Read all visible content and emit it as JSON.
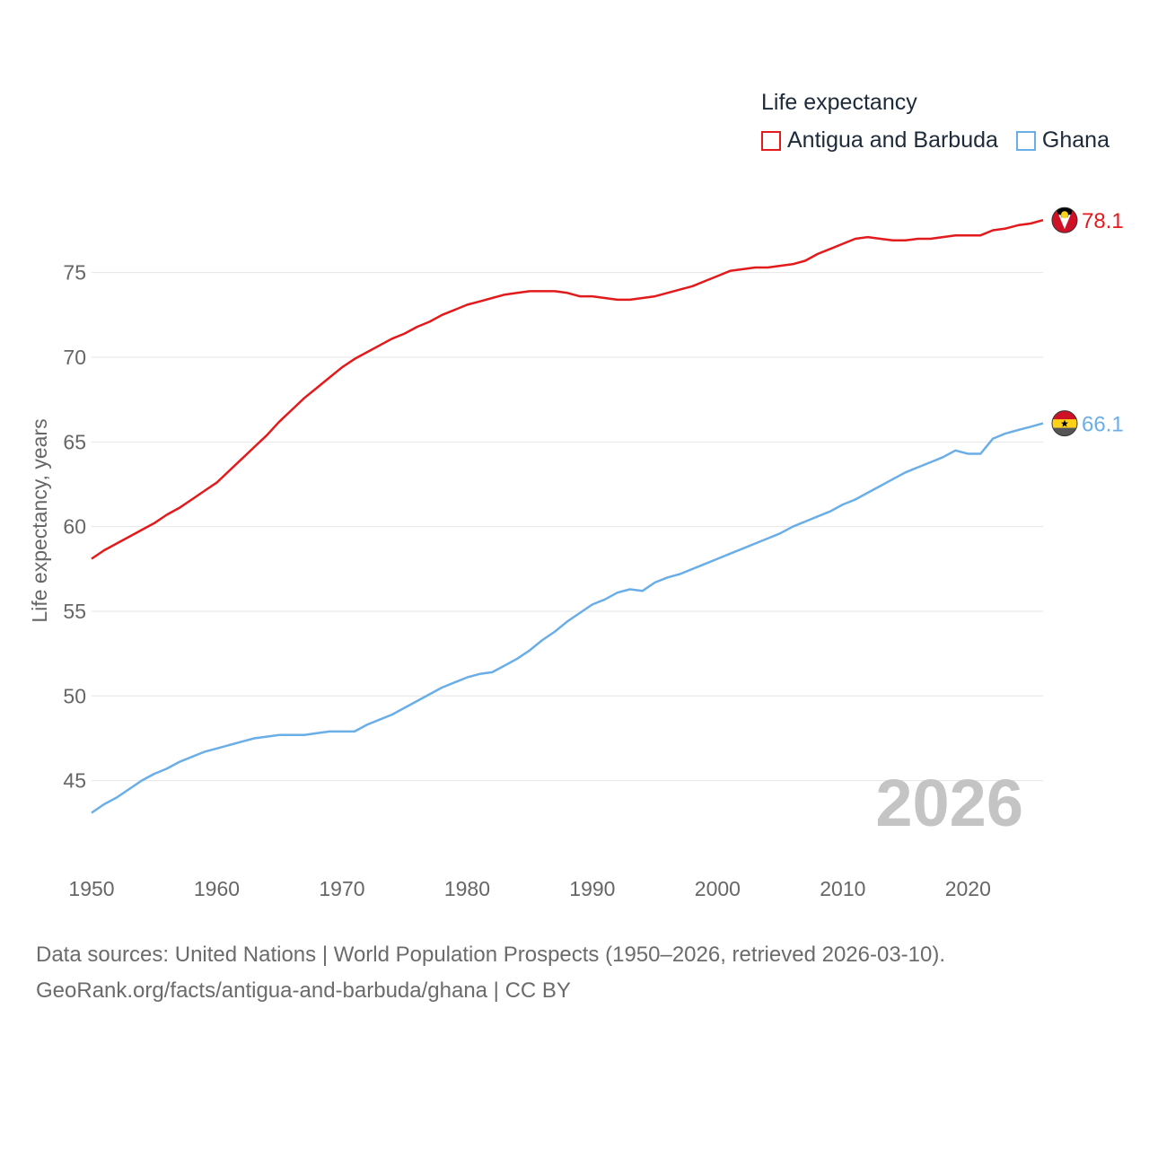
{
  "legend": {
    "title": "Life expectancy",
    "items": [
      {
        "label": "Antigua and Barbuda",
        "color": "#e31a1c"
      },
      {
        "label": "Ghana",
        "color": "#6aaee8"
      }
    ]
  },
  "footer": {
    "line1": "Data sources: United Nations | World Population Prospects (1950–2026, retrieved 2026-03-10).",
    "line2": "GeoRank.org/facts/antigua-and-barbuda/ghana | CC BY"
  },
  "chart_data": {
    "type": "line",
    "ylabel": "Life expectancy, years",
    "xlim": [
      1950,
      2026
    ],
    "ylim": [
      41.8,
      78.8
    ],
    "x_ticks": [
      1950,
      1960,
      1970,
      1980,
      1990,
      2000,
      2010,
      2020
    ],
    "y_ticks": [
      45,
      50,
      55,
      60,
      65,
      70,
      75
    ],
    "watermark_year": "2026",
    "series": [
      {
        "name": "Antigua and Barbuda",
        "color": "#e31a1c",
        "end_label": "78.1",
        "flag": "antigua-and-barbuda-flag",
        "points": [
          [
            1950,
            58.1
          ],
          [
            1951,
            58.6
          ],
          [
            1952,
            59.0
          ],
          [
            1953,
            59.4
          ],
          [
            1954,
            59.8
          ],
          [
            1955,
            60.2
          ],
          [
            1956,
            60.7
          ],
          [
            1957,
            61.1
          ],
          [
            1958,
            61.6
          ],
          [
            1959,
            62.1
          ],
          [
            1960,
            62.6
          ],
          [
            1961,
            63.3
          ],
          [
            1962,
            64.0
          ],
          [
            1963,
            64.7
          ],
          [
            1964,
            65.4
          ],
          [
            1965,
            66.2
          ],
          [
            1966,
            66.9
          ],
          [
            1967,
            67.6
          ],
          [
            1968,
            68.2
          ],
          [
            1969,
            68.8
          ],
          [
            1970,
            69.4
          ],
          [
            1971,
            69.9
          ],
          [
            1972,
            70.3
          ],
          [
            1973,
            70.7
          ],
          [
            1974,
            71.1
          ],
          [
            1975,
            71.4
          ],
          [
            1976,
            71.8
          ],
          [
            1977,
            72.1
          ],
          [
            1978,
            72.5
          ],
          [
            1979,
            72.8
          ],
          [
            1980,
            73.1
          ],
          [
            1981,
            73.3
          ],
          [
            1982,
            73.5
          ],
          [
            1983,
            73.7
          ],
          [
            1984,
            73.8
          ],
          [
            1985,
            73.9
          ],
          [
            1986,
            73.9
          ],
          [
            1987,
            73.9
          ],
          [
            1988,
            73.8
          ],
          [
            1989,
            73.6
          ],
          [
            1990,
            73.6
          ],
          [
            1991,
            73.5
          ],
          [
            1992,
            73.4
          ],
          [
            1993,
            73.4
          ],
          [
            1994,
            73.5
          ],
          [
            1995,
            73.6
          ],
          [
            1996,
            73.8
          ],
          [
            1997,
            74.0
          ],
          [
            1998,
            74.2
          ],
          [
            1999,
            74.5
          ],
          [
            2000,
            74.8
          ],
          [
            2001,
            75.1
          ],
          [
            2002,
            75.2
          ],
          [
            2003,
            75.3
          ],
          [
            2004,
            75.3
          ],
          [
            2005,
            75.4
          ],
          [
            2006,
            75.5
          ],
          [
            2007,
            75.7
          ],
          [
            2008,
            76.1
          ],
          [
            2009,
            76.4
          ],
          [
            2010,
            76.7
          ],
          [
            2011,
            77.0
          ],
          [
            2012,
            77.1
          ],
          [
            2013,
            77.0
          ],
          [
            2014,
            76.9
          ],
          [
            2015,
            76.9
          ],
          [
            2016,
            77.0
          ],
          [
            2017,
            77.0
          ],
          [
            2018,
            77.1
          ],
          [
            2019,
            77.2
          ],
          [
            2020,
            77.2
          ],
          [
            2021,
            77.2
          ],
          [
            2022,
            77.5
          ],
          [
            2023,
            77.6
          ],
          [
            2024,
            77.8
          ],
          [
            2025,
            77.9
          ],
          [
            2026,
            78.1
          ]
        ]
      },
      {
        "name": "Ghana",
        "color": "#6aaee8",
        "end_label": "66.1",
        "flag": "ghana-flag",
        "points": [
          [
            1950,
            43.1
          ],
          [
            1951,
            43.6
          ],
          [
            1952,
            44.0
          ],
          [
            1953,
            44.5
          ],
          [
            1954,
            45.0
          ],
          [
            1955,
            45.4
          ],
          [
            1956,
            45.7
          ],
          [
            1957,
            46.1
          ],
          [
            1958,
            46.4
          ],
          [
            1959,
            46.7
          ],
          [
            1960,
            46.9
          ],
          [
            1961,
            47.1
          ],
          [
            1962,
            47.3
          ],
          [
            1963,
            47.5
          ],
          [
            1964,
            47.6
          ],
          [
            1965,
            47.7
          ],
          [
            1966,
            47.7
          ],
          [
            1967,
            47.7
          ],
          [
            1968,
            47.8
          ],
          [
            1969,
            47.9
          ],
          [
            1970,
            47.9
          ],
          [
            1971,
            47.9
          ],
          [
            1972,
            48.3
          ],
          [
            1973,
            48.6
          ],
          [
            1974,
            48.9
          ],
          [
            1975,
            49.3
          ],
          [
            1976,
            49.7
          ],
          [
            1977,
            50.1
          ],
          [
            1978,
            50.5
          ],
          [
            1979,
            50.8
          ],
          [
            1980,
            51.1
          ],
          [
            1981,
            51.3
          ],
          [
            1982,
            51.4
          ],
          [
            1983,
            51.8
          ],
          [
            1984,
            52.2
          ],
          [
            1985,
            52.7
          ],
          [
            1986,
            53.3
          ],
          [
            1987,
            53.8
          ],
          [
            1988,
            54.4
          ],
          [
            1989,
            54.9
          ],
          [
            1990,
            55.4
          ],
          [
            1991,
            55.7
          ],
          [
            1992,
            56.1
          ],
          [
            1993,
            56.3
          ],
          [
            1994,
            56.2
          ],
          [
            1995,
            56.7
          ],
          [
            1996,
            57.0
          ],
          [
            1997,
            57.2
          ],
          [
            1998,
            57.5
          ],
          [
            1999,
            57.8
          ],
          [
            2000,
            58.1
          ],
          [
            2001,
            58.4
          ],
          [
            2002,
            58.7
          ],
          [
            2003,
            59.0
          ],
          [
            2004,
            59.3
          ],
          [
            2005,
            59.6
          ],
          [
            2006,
            60.0
          ],
          [
            2007,
            60.3
          ],
          [
            2008,
            60.6
          ],
          [
            2009,
            60.9
          ],
          [
            2010,
            61.3
          ],
          [
            2011,
            61.6
          ],
          [
            2012,
            62.0
          ],
          [
            2013,
            62.4
          ],
          [
            2014,
            62.8
          ],
          [
            2015,
            63.2
          ],
          [
            2016,
            63.5
          ],
          [
            2017,
            63.8
          ],
          [
            2018,
            64.1
          ],
          [
            2019,
            64.5
          ],
          [
            2020,
            64.3
          ],
          [
            2021,
            64.3
          ],
          [
            2022,
            65.2
          ],
          [
            2023,
            65.5
          ],
          [
            2024,
            65.7
          ],
          [
            2025,
            65.9
          ],
          [
            2026,
            66.1
          ]
        ]
      }
    ]
  }
}
